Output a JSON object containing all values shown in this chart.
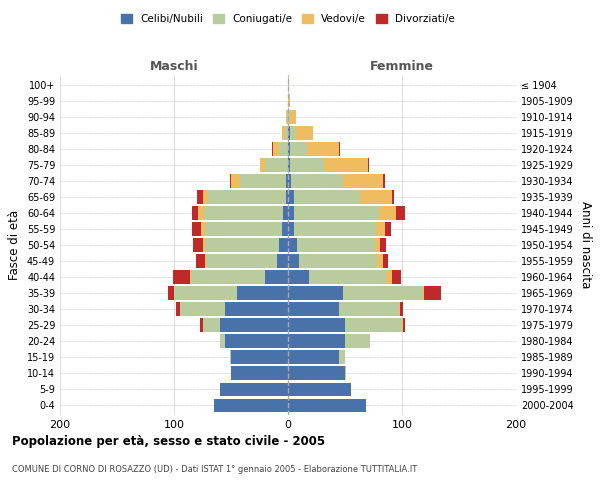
{
  "age_groups": [
    "0-4",
    "5-9",
    "10-14",
    "15-19",
    "20-24",
    "25-29",
    "30-34",
    "35-39",
    "40-44",
    "45-49",
    "50-54",
    "55-59",
    "60-64",
    "65-69",
    "70-74",
    "75-79",
    "80-84",
    "85-89",
    "90-94",
    "95-99",
    "100+"
  ],
  "birth_years": [
    "2000-2004",
    "1995-1999",
    "1990-1994",
    "1985-1989",
    "1980-1984",
    "1975-1979",
    "1970-1974",
    "1965-1969",
    "1960-1964",
    "1955-1959",
    "1950-1954",
    "1945-1949",
    "1940-1944",
    "1935-1939",
    "1930-1934",
    "1925-1929",
    "1920-1924",
    "1915-1919",
    "1910-1914",
    "1905-1909",
    "≤ 1904"
  ],
  "males": {
    "celibi": [
      65,
      60,
      50,
      50,
      55,
      60,
      55,
      45,
      20,
      10,
      8,
      5,
      4,
      2,
      2,
      0,
      0,
      0,
      0,
      0,
      0
    ],
    "coniugati": [
      0,
      0,
      0,
      1,
      5,
      15,
      40,
      55,
      65,
      62,
      65,
      68,
      70,
      68,
      40,
      20,
      8,
      3,
      1,
      0,
      0
    ],
    "vedovi": [
      0,
      0,
      0,
      0,
      0,
      0,
      0,
      0,
      1,
      1,
      2,
      3,
      5,
      5,
      8,
      5,
      5,
      2,
      1,
      0,
      0
    ],
    "divorziati": [
      0,
      0,
      0,
      0,
      0,
      2,
      3,
      5,
      15,
      8,
      8,
      8,
      5,
      5,
      1,
      0,
      1,
      0,
      0,
      0,
      0
    ]
  },
  "females": {
    "nubili": [
      68,
      55,
      50,
      45,
      50,
      50,
      45,
      48,
      18,
      10,
      8,
      5,
      5,
      5,
      3,
      2,
      2,
      2,
      0,
      0,
      0
    ],
    "coniugate": [
      0,
      0,
      1,
      5,
      22,
      50,
      52,
      70,
      68,
      68,
      68,
      72,
      75,
      58,
      45,
      30,
      15,
      5,
      2,
      0,
      0
    ],
    "vedove": [
      0,
      0,
      0,
      0,
      0,
      1,
      1,
      1,
      5,
      5,
      5,
      8,
      15,
      28,
      35,
      38,
      28,
      15,
      5,
      2,
      1
    ],
    "divorziate": [
      0,
      0,
      0,
      0,
      0,
      2,
      3,
      15,
      8,
      5,
      5,
      5,
      8,
      2,
      2,
      1,
      1,
      0,
      0,
      0,
      0
    ]
  },
  "colors": {
    "celibi_nubili": "#4a72aa",
    "coniugati": "#b8cca0",
    "vedovi": "#f0bc60",
    "divorziati": "#c0292a"
  },
  "title": "Popolazione per età, sesso e stato civile - 2005",
  "subtitle": "COMUNE DI CORNO DI ROSAZZO (UD) - Dati ISTAT 1° gennaio 2005 - Elaborazione TUTTITALIA.IT",
  "xlabel_left": "Maschi",
  "xlabel_right": "Femmine",
  "ylabel_left": "Fasce di età",
  "ylabel_right": "Anni di nascita",
  "xlim": 200,
  "legend_labels": [
    "Celibi/Nubili",
    "Coniugati/e",
    "Vedovi/e",
    "Divorziati/e"
  ],
  "background_color": "#ffffff",
  "grid_color": "#cccccc"
}
